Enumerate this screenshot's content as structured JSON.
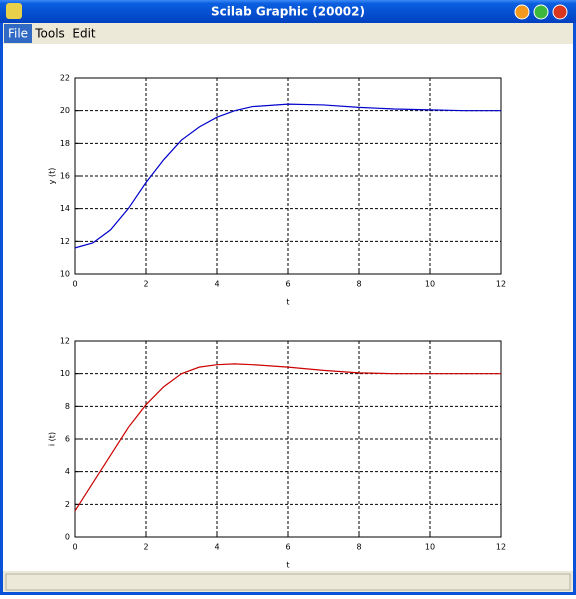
{
  "window": {
    "title": "Scilab Graphic (20002)",
    "menu": [
      "File",
      "Tools",
      "Edit"
    ]
  },
  "chart_data": [
    {
      "type": "line",
      "x_label": "t",
      "y_label": "y (t)",
      "x": [
        0,
        0.5,
        1,
        1.5,
        2,
        2.5,
        3,
        3.5,
        4,
        4.5,
        5,
        6,
        7,
        8,
        9,
        10,
        11,
        12
      ],
      "values": [
        11.6,
        11.9,
        12.7,
        14.0,
        15.6,
        17.0,
        18.2,
        19.0,
        19.6,
        20.0,
        20.25,
        20.4,
        20.35,
        20.2,
        20.1,
        20.05,
        20.0,
        20.0
      ],
      "color": "#0000cc",
      "xlim": [
        0,
        12
      ],
      "xticks": [
        0,
        2,
        4,
        6,
        8,
        10,
        12
      ],
      "ylim": [
        10,
        22
      ],
      "yticks": [
        10,
        12,
        14,
        16,
        18,
        20,
        22
      ],
      "grid": true
    },
    {
      "type": "line",
      "x_label": "t",
      "y_label": "i (t)",
      "x": [
        0,
        0.5,
        1,
        1.5,
        2,
        2.5,
        3,
        3.5,
        4,
        4.5,
        5,
        6,
        7,
        8,
        9,
        10,
        11,
        12
      ],
      "values": [
        1.6,
        3.3,
        5.0,
        6.7,
        8.1,
        9.2,
        10.0,
        10.4,
        10.55,
        10.6,
        10.55,
        10.4,
        10.2,
        10.05,
        10.0,
        10.0,
        10.0,
        10.0
      ],
      "color": "#cc0000",
      "xlim": [
        0,
        12
      ],
      "xticks": [
        0,
        2,
        4,
        6,
        8,
        10,
        12
      ],
      "ylim": [
        0,
        12
      ],
      "yticks": [
        0,
        2,
        4,
        6,
        8,
        10,
        12
      ],
      "grid": true
    }
  ]
}
